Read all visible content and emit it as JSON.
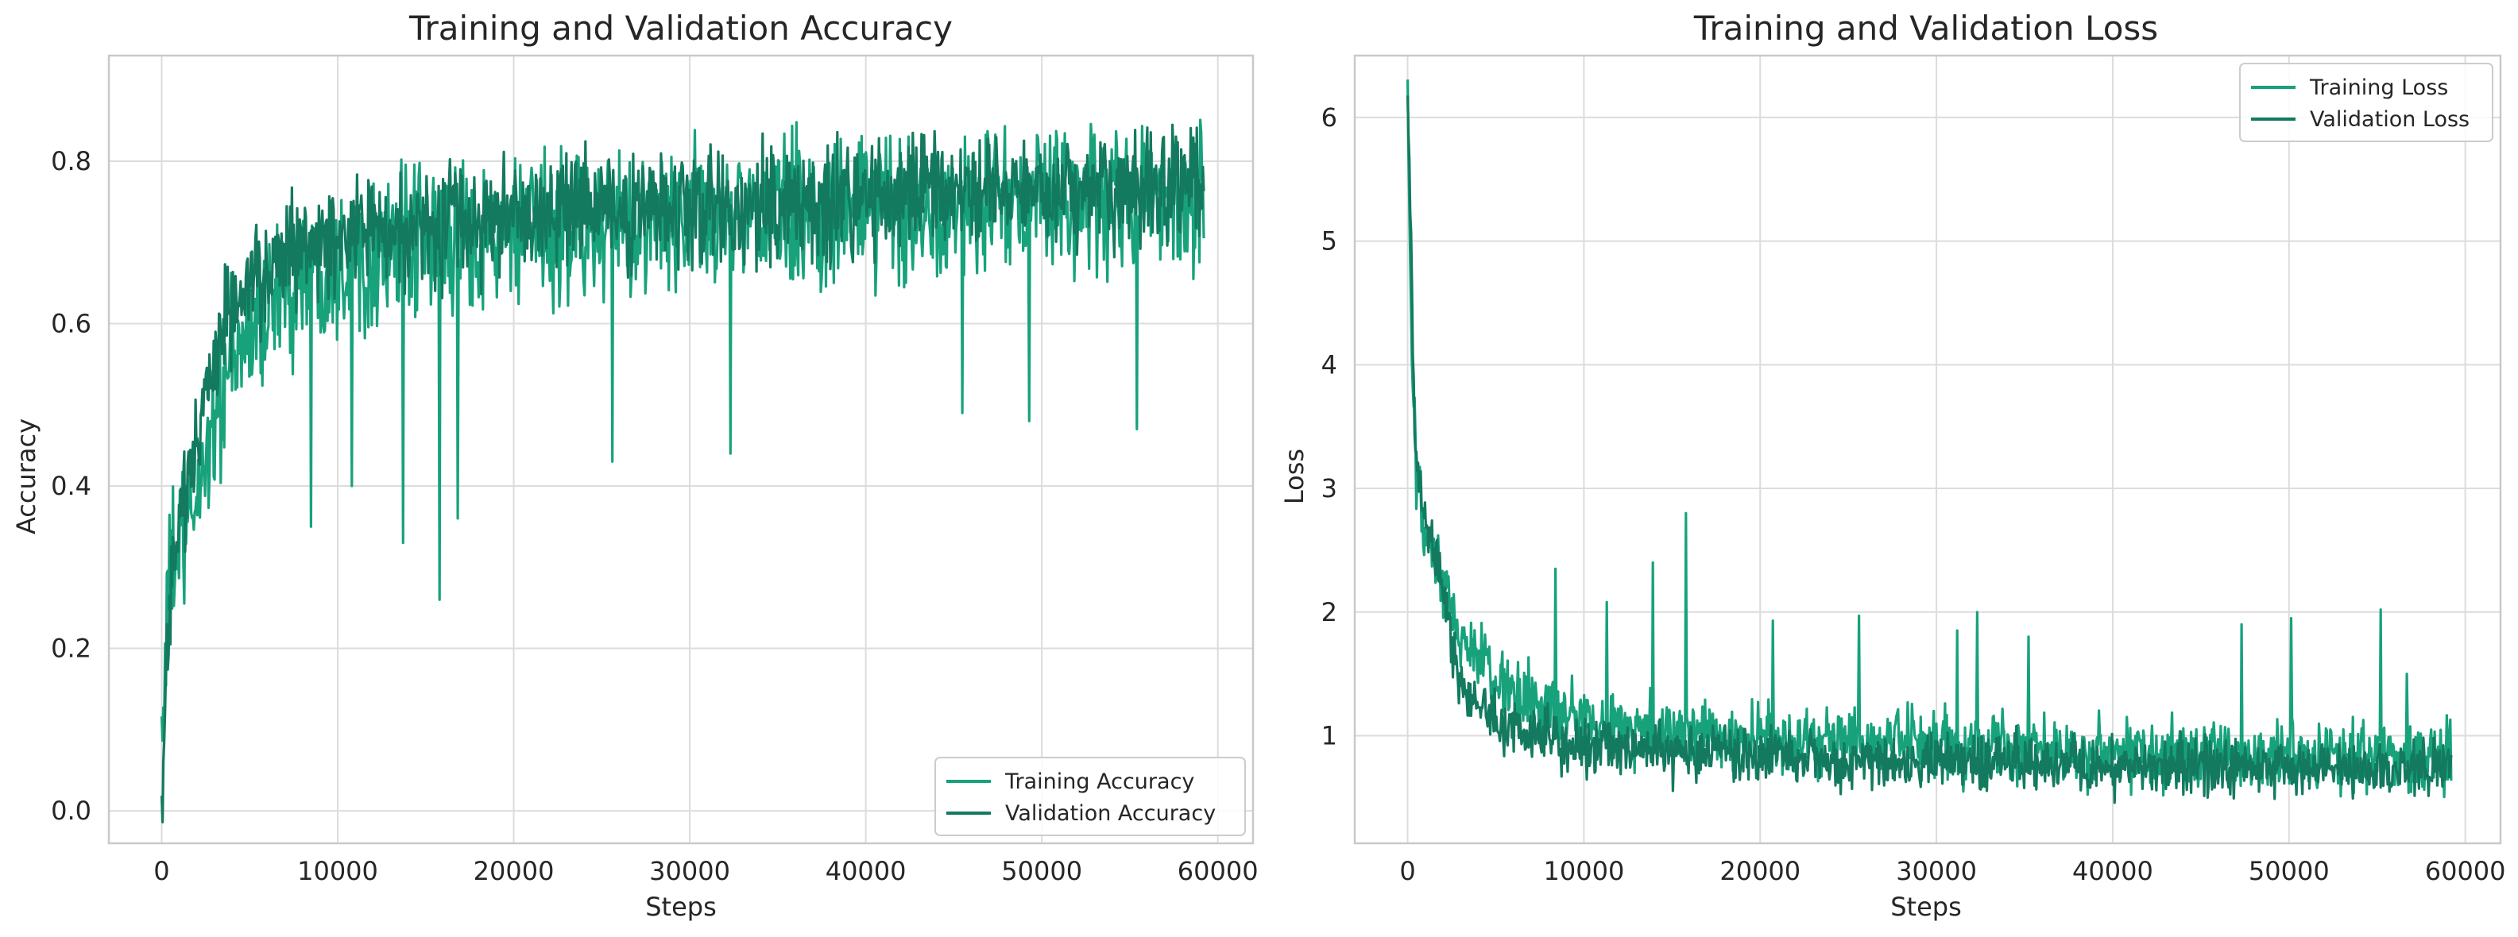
{
  "colors": {
    "training": "#17a27c",
    "validation": "#137a5f",
    "grid": "#dcdcdc",
    "frame": "#c9c9c9",
    "text": "#262626"
  },
  "chart_data": [
    {
      "type": "line",
      "title": "Training and Validation Accuracy",
      "xlabel": "Steps",
      "ylabel": "Accuracy",
      "xlim": [
        -3000,
        62000
      ],
      "ylim": [
        -0.04,
        0.93
      ],
      "xticks": [
        0,
        10000,
        20000,
        30000,
        40000,
        50000,
        60000
      ],
      "xtick_labels": [
        "0",
        "10000",
        "20000",
        "30000",
        "40000",
        "50000",
        "60000"
      ],
      "yticks": [
        0.0,
        0.2,
        0.4,
        0.6,
        0.8
      ],
      "ytick_labels": [
        "0.0",
        "0.2",
        "0.4",
        "0.6",
        "0.8"
      ],
      "grid": true,
      "legend_position": "lower-right",
      "x_max": 59200,
      "series": [
        {
          "name": "Training Accuracy",
          "color": "#17a27c",
          "key_points": [
            [
              0,
              0.1
            ],
            [
              500,
              0.3
            ],
            [
              1500,
              0.34
            ],
            [
              2500,
              0.44
            ],
            [
              4000,
              0.55
            ],
            [
              6000,
              0.62
            ],
            [
              8000,
              0.66
            ],
            [
              10000,
              0.68
            ],
            [
              15000,
              0.7
            ],
            [
              20000,
              0.71
            ],
            [
              30000,
              0.73
            ],
            [
              40000,
              0.74
            ],
            [
              50000,
              0.75
            ],
            [
              59200,
              0.76
            ]
          ],
          "noise": 0.045,
          "spikes": [
            [
              8500,
              0.35
            ],
            [
              10800,
              0.4
            ],
            [
              13700,
              0.33
            ],
            [
              15800,
              0.26
            ],
            [
              16800,
              0.36
            ],
            [
              25600,
              0.43
            ],
            [
              32300,
              0.44
            ],
            [
              45500,
              0.49
            ],
            [
              49300,
              0.48
            ],
            [
              55400,
              0.47
            ]
          ]
        },
        {
          "name": "Validation Accuracy",
          "color": "#137a5f",
          "key_points": [
            [
              0,
              0.0
            ],
            [
              300,
              0.2
            ],
            [
              800,
              0.35
            ],
            [
              1500,
              0.4
            ],
            [
              2500,
              0.5
            ],
            [
              3500,
              0.6
            ],
            [
              5000,
              0.64
            ],
            [
              7000,
              0.68
            ],
            [
              10000,
              0.71
            ],
            [
              15000,
              0.72
            ],
            [
              20000,
              0.73
            ],
            [
              30000,
              0.74
            ],
            [
              40000,
              0.755
            ],
            [
              50000,
              0.765
            ],
            [
              59200,
              0.77
            ]
          ],
          "noise": 0.035,
          "spikes": []
        }
      ]
    },
    {
      "type": "line",
      "title": "Training and Validation Loss",
      "xlabel": "Steps",
      "ylabel": "Loss",
      "xlim": [
        -3000,
        62000
      ],
      "ylim": [
        0.13,
        6.5
      ],
      "xticks": [
        0,
        10000,
        20000,
        30000,
        40000,
        50000,
        60000
      ],
      "xtick_labels": [
        "0",
        "10000",
        "20000",
        "30000",
        "40000",
        "50000",
        "60000"
      ],
      "yticks": [
        1,
        2,
        3,
        4,
        5,
        6
      ],
      "ytick_labels": [
        "1",
        "2",
        "3",
        "4",
        "5",
        "6"
      ],
      "grid": true,
      "legend_position": "top-right",
      "x_max": 59200,
      "series": [
        {
          "name": "Training Loss",
          "color": "#17a27c",
          "key_points": [
            [
              0,
              6.2
            ],
            [
              200,
              4.3
            ],
            [
              500,
              3.0
            ],
            [
              1000,
              2.6
            ],
            [
              2000,
              2.2
            ],
            [
              3000,
              1.8
            ],
            [
              5000,
              1.45
            ],
            [
              7000,
              1.25
            ],
            [
              10000,
              1.12
            ],
            [
              15000,
              1.02
            ],
            [
              20000,
              0.97
            ],
            [
              30000,
              0.92
            ],
            [
              40000,
              0.88
            ],
            [
              50000,
              0.85
            ],
            [
              59200,
              0.85
            ]
          ],
          "noise": 0.14,
          "spikes": [
            [
              8400,
              2.35
            ],
            [
              11300,
              2.08
            ],
            [
              13900,
              2.4
            ],
            [
              15800,
              2.8
            ],
            [
              20700,
              1.93
            ],
            [
              25600,
              1.97
            ],
            [
              31200,
              1.85
            ],
            [
              32300,
              2.0
            ],
            [
              35200,
              1.8
            ],
            [
              47300,
              1.9
            ],
            [
              50100,
              1.95
            ],
            [
              55200,
              2.02
            ],
            [
              56700,
              1.5
            ]
          ]
        },
        {
          "name": "Validation Loss",
          "color": "#137a5f",
          "key_points": [
            [
              0,
              6.2
            ],
            [
              200,
              4.8
            ],
            [
              400,
              3.5
            ],
            [
              800,
              2.8
            ],
            [
              1500,
              2.5
            ],
            [
              3000,
              1.4
            ],
            [
              5000,
              1.15
            ],
            [
              7000,
              1.0
            ],
            [
              10000,
              0.92
            ],
            [
              15000,
              0.87
            ],
            [
              20000,
              0.82
            ],
            [
              30000,
              0.78
            ],
            [
              40000,
              0.75
            ],
            [
              50000,
              0.74
            ],
            [
              59200,
              0.74
            ]
          ],
          "noise": 0.11,
          "spikes": []
        }
      ]
    }
  ]
}
